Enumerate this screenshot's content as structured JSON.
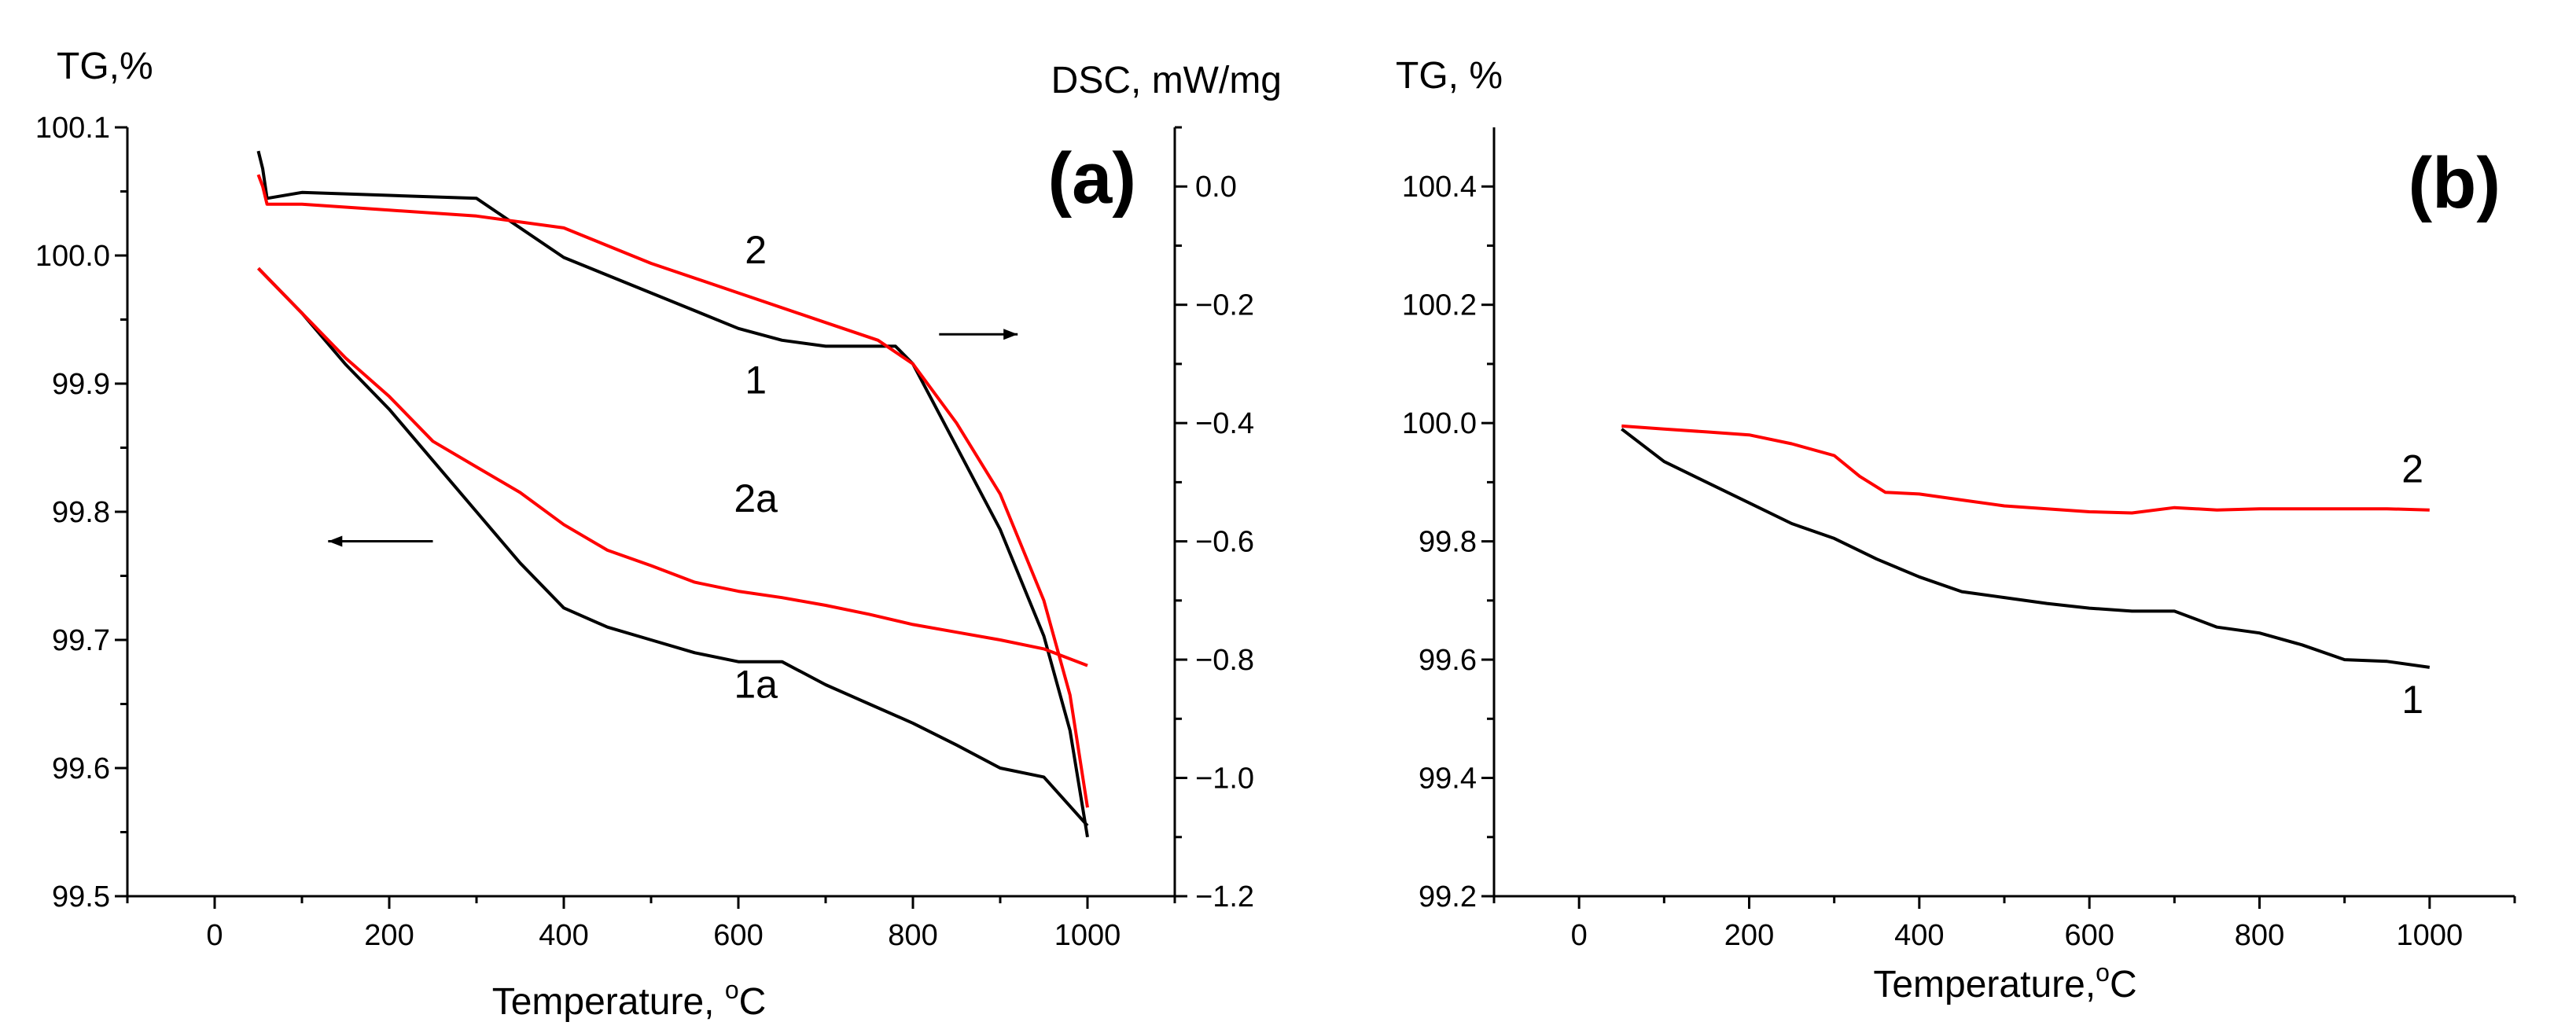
{
  "colors": {
    "series_1": "#000000",
    "series_2": "#ff0000",
    "axis": "#000000"
  },
  "chart_data": [
    {
      "type": "line",
      "panel_label": "(a)",
      "xlabel": "Temperature, ",
      "xlabel_sup": "o",
      "xlabel_unit": "C",
      "ylabel": "TG,%",
      "y2label": "DSC, mW/mg",
      "xlim": [
        -100,
        1100
      ],
      "ylim": [
        99.5,
        100.1
      ],
      "y2lim": [
        -1.2,
        0.1
      ],
      "xticks": [
        0,
        200,
        400,
        600,
        800,
        1000
      ],
      "xtick_labels": [
        "0",
        "200",
        "400",
        "600",
        "800",
        "1000"
      ],
      "yticks": [
        99.5,
        99.6,
        99.7,
        99.8,
        99.9,
        100.0,
        100.1
      ],
      "ytick_labels": [
        "99.5",
        "99.6",
        "99.7",
        "99.8",
        "99.9",
        "100.0",
        "100.1"
      ],
      "y2ticks": [
        -1.2,
        -1.0,
        -0.8,
        -0.6,
        -0.4,
        -0.2,
        0.0
      ],
      "y2tick_labels": [
        "−1.2",
        "−1.0",
        "−0.8",
        "−0.6",
        "−0.4",
        "−0.2",
        "0.0"
      ],
      "series": [
        {
          "name": "1",
          "axis": "right",
          "color": "#000000",
          "x": [
            50,
            55,
            60,
            100,
            200,
            300,
            400,
            500,
            600,
            650,
            700,
            750,
            780,
            800,
            850,
            900,
            950,
            980,
            1000
          ],
          "values": [
            0.06,
            0.03,
            -0.02,
            -0.01,
            -0.015,
            -0.02,
            -0.12,
            -0.18,
            -0.24,
            -0.26,
            -0.27,
            -0.27,
            -0.27,
            -0.3,
            -0.44,
            -0.58,
            -0.76,
            -0.92,
            -1.1
          ]
        },
        {
          "name": "2",
          "axis": "right",
          "color": "#ff0000",
          "x": [
            50,
            55,
            60,
            100,
            200,
            300,
            400,
            500,
            600,
            700,
            760,
            800,
            850,
            900,
            950,
            980,
            1000
          ],
          "values": [
            0.02,
            0.0,
            -0.03,
            -0.03,
            -0.04,
            -0.05,
            -0.07,
            -0.13,
            -0.18,
            -0.23,
            -0.26,
            -0.3,
            -0.4,
            -0.52,
            -0.7,
            -0.86,
            -1.05
          ]
        },
        {
          "name": "1a",
          "axis": "left",
          "color": "#000000",
          "x": [
            50,
            100,
            150,
            200,
            250,
            300,
            350,
            400,
            450,
            500,
            550,
            600,
            650,
            700,
            750,
            800,
            850,
            900,
            950,
            1000
          ],
          "values": [
            99.99,
            99.955,
            99.915,
            99.88,
            99.84,
            99.8,
            99.76,
            99.725,
            99.71,
            99.7,
            99.69,
            99.683,
            99.683,
            99.665,
            99.65,
            99.635,
            99.618,
            99.6,
            99.593,
            99.555
          ]
        },
        {
          "name": "2a",
          "axis": "left",
          "color": "#ff0000",
          "x": [
            50,
            100,
            150,
            200,
            250,
            300,
            350,
            400,
            450,
            500,
            550,
            600,
            650,
            700,
            750,
            800,
            850,
            900,
            950,
            1000
          ],
          "values": [
            99.99,
            99.955,
            99.92,
            99.89,
            99.855,
            99.835,
            99.815,
            99.79,
            99.77,
            99.758,
            99.745,
            99.738,
            99.733,
            99.727,
            99.72,
            99.712,
            99.706,
            99.7,
            99.693,
            99.68
          ]
        }
      ],
      "annotations": [
        {
          "text": "2",
          "x": 620,
          "y2": -0.13
        },
        {
          "text": "1",
          "x": 620,
          "y2": -0.35
        },
        {
          "text": "2a",
          "x": 620,
          "y": 99.8
        },
        {
          "text": "1a",
          "x": 620,
          "y": 99.655
        }
      ],
      "arrows": [
        {
          "direction": "right",
          "axis": "right",
          "from_x": 830,
          "to_x": 920,
          "y": -0.25
        },
        {
          "direction": "left",
          "axis": "left",
          "from_x": 250,
          "to_x": 130,
          "y": 99.777
        }
      ]
    },
    {
      "type": "line",
      "panel_label": "(b)",
      "xlabel": "Temperature,",
      "xlabel_sup": "o",
      "xlabel_unit": "C",
      "ylabel": "TG, %",
      "xlim": [
        -100,
        1100
      ],
      "ylim": [
        99.2,
        100.5
      ],
      "xticks": [
        0,
        200,
        400,
        600,
        800,
        1000
      ],
      "xtick_labels": [
        "0",
        "200",
        "400",
        "600",
        "800",
        "1000"
      ],
      "yticks": [
        99.2,
        99.4,
        99.6,
        99.8,
        100.0,
        100.2,
        100.4
      ],
      "ytick_labels": [
        "99.2",
        "99.4",
        "99.6",
        "99.8",
        "100.0",
        "100.2",
        "100.4"
      ],
      "series": [
        {
          "name": "1",
          "color": "#000000",
          "x": [
            50,
            100,
            150,
            200,
            250,
            300,
            350,
            400,
            450,
            500,
            550,
            600,
            650,
            700,
            750,
            800,
            850,
            900,
            950,
            1000
          ],
          "values": [
            99.99,
            99.935,
            99.9,
            99.865,
            99.83,
            99.805,
            99.77,
            99.74,
            99.715,
            99.705,
            99.695,
            99.687,
            99.682,
            99.682,
            99.655,
            99.645,
            99.625,
            99.6,
            99.597,
            99.587
          ]
        },
        {
          "name": "2",
          "color": "#ff0000",
          "x": [
            50,
            100,
            150,
            200,
            250,
            300,
            330,
            360,
            400,
            450,
            500,
            550,
            600,
            650,
            700,
            750,
            800,
            850,
            900,
            950,
            1000
          ],
          "values": [
            99.995,
            99.99,
            99.985,
            99.98,
            99.965,
            99.945,
            99.91,
            99.883,
            99.88,
            99.87,
            99.86,
            99.855,
            99.85,
            99.848,
            99.857,
            99.853,
            99.855,
            99.855,
            99.855,
            99.855,
            99.853
          ]
        }
      ],
      "annotations": [
        {
          "text": "2",
          "x": 980,
          "y": 99.9
        },
        {
          "text": "1",
          "x": 980,
          "y": 99.51
        }
      ]
    }
  ]
}
